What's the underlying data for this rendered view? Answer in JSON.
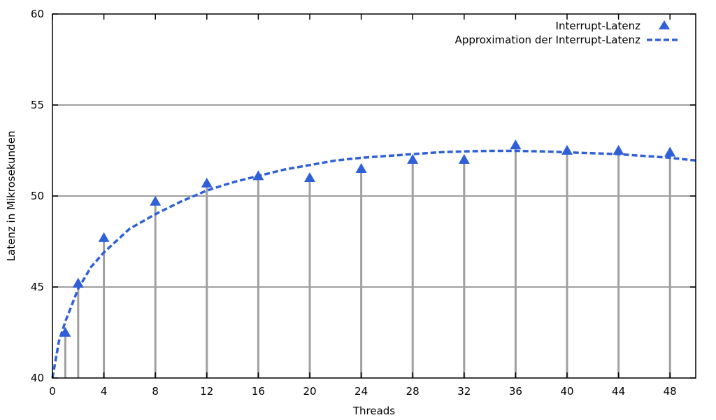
{
  "chart_data": {
    "type": "scatter",
    "xlabel": "Threads",
    "ylabel": "Latenz in Mikrosekunden",
    "xlim": [
      0,
      50
    ],
    "ylim": [
      40,
      60
    ],
    "x_ticks": [
      "0",
      "4",
      "8",
      "12",
      "16",
      "20",
      "24",
      "28",
      "32",
      "36",
      "40",
      "44",
      "48"
    ],
    "y_ticks": [
      "40",
      "45",
      "50",
      "55",
      "60"
    ],
    "grid": "horizontal",
    "legend_position": "top-right",
    "colors": {
      "series": "#3060d8",
      "impulse": "#a0a0a0",
      "grid": "#a0a0a0",
      "axis": "#000000"
    },
    "series": [
      {
        "name": "Interrupt-Latenz",
        "marker": "triangle",
        "x": [
          1,
          2,
          4,
          8,
          12,
          16,
          20,
          24,
          28,
          32,
          36,
          40,
          44,
          48
        ],
        "y": [
          42.5,
          45.2,
          47.7,
          49.7,
          50.7,
          51.1,
          51.0,
          51.5,
          52.0,
          52.0,
          52.8,
          52.5,
          52.5,
          52.4
        ]
      },
      {
        "name": "Approximation der Interrupt-Latenz",
        "style": "dashed-line",
        "x": [
          0,
          0.5,
          1,
          2,
          3,
          4,
          6,
          8,
          10,
          12,
          14,
          16,
          18,
          20,
          22,
          24,
          26,
          28,
          30,
          32,
          34,
          36,
          38,
          40,
          42,
          44,
          46,
          48,
          50
        ],
        "y": [
          40.0,
          42.0,
          43.1,
          44.9,
          46.1,
          46.9,
          48.2,
          49.0,
          49.7,
          50.3,
          50.75,
          51.1,
          51.45,
          51.7,
          51.95,
          52.1,
          52.2,
          52.3,
          52.4,
          52.45,
          52.48,
          52.48,
          52.45,
          52.4,
          52.35,
          52.3,
          52.2,
          52.1,
          51.95
        ]
      }
    ]
  }
}
